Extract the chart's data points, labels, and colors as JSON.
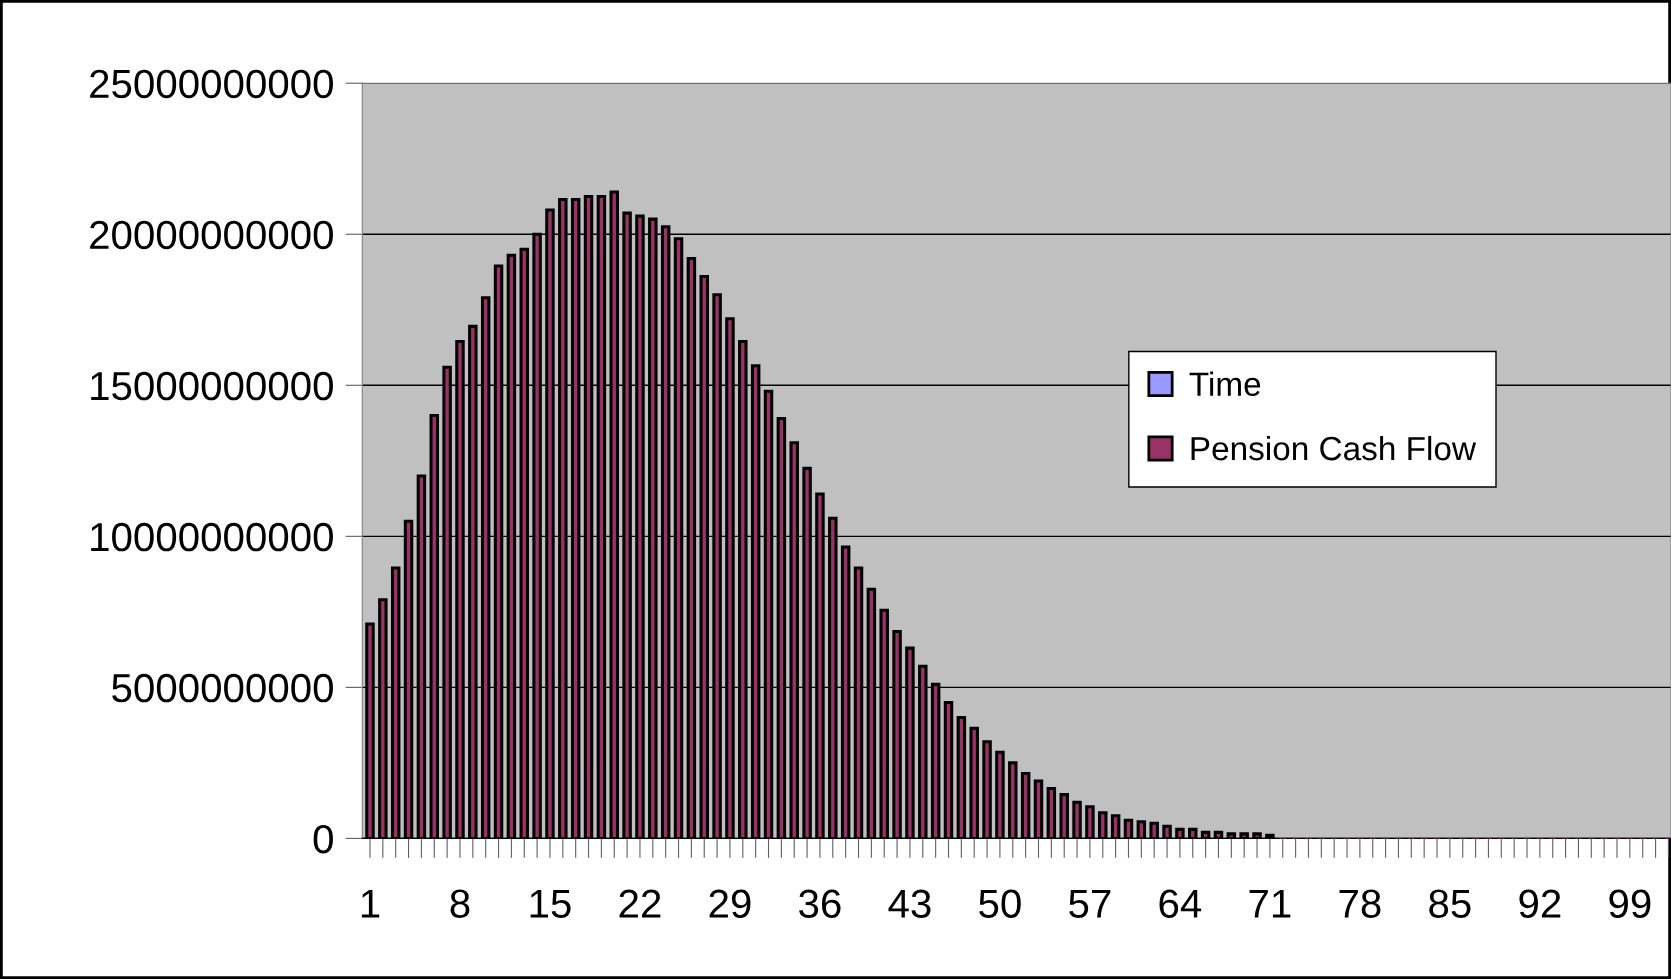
{
  "chart_data": {
    "type": "bar",
    "categories": [
      "1",
      null,
      null,
      null,
      null,
      null,
      null,
      "8",
      null,
      null,
      null,
      null,
      null,
      null,
      "15",
      null,
      null,
      null,
      null,
      null,
      null,
      "22",
      null,
      null,
      null,
      null,
      null,
      null,
      "29",
      null,
      null,
      null,
      null,
      null,
      null,
      "36",
      null,
      null,
      null,
      null,
      null,
      null,
      "43",
      null,
      null,
      null,
      null,
      null,
      null,
      "50",
      null,
      null,
      null,
      null,
      null,
      null,
      "57",
      null,
      null,
      null,
      null,
      null,
      null,
      "64",
      null,
      null,
      null,
      null,
      null,
      null,
      "71",
      null,
      null,
      null,
      null,
      null,
      null,
      "78",
      null,
      null,
      null,
      null,
      null,
      null,
      "85",
      null,
      null,
      null,
      null,
      null,
      null,
      "92",
      null,
      null,
      null,
      null,
      null,
      null,
      "99",
      null,
      null,
      null
    ],
    "series": [
      {
        "name": "Time",
        "color": "#9999ff",
        "values": [
          null,
          null,
          null,
          null,
          null,
          null,
          null,
          null,
          null,
          null,
          null,
          null,
          null,
          null,
          null,
          null,
          null,
          null,
          null,
          null,
          null,
          null,
          null,
          null,
          null,
          null,
          null,
          null,
          null,
          null,
          null,
          null,
          null,
          null,
          null,
          null,
          null,
          null,
          null,
          null,
          null,
          null,
          null,
          null,
          null,
          null,
          null,
          null,
          null,
          null,
          null,
          null,
          null,
          null,
          null,
          null,
          null,
          null,
          null,
          null,
          null,
          null,
          null,
          null,
          null,
          null,
          null,
          null,
          null,
          null,
          null,
          null,
          null,
          null,
          null,
          null,
          null,
          null,
          null,
          null,
          null,
          null,
          null,
          null,
          null,
          null,
          null,
          null,
          null,
          null,
          null,
          null,
          null,
          null,
          null,
          null,
          null,
          null,
          null,
          null,
          null,
          null
        ]
      },
      {
        "name": "Pension Cash Flow",
        "color": "#993366",
        "values": [
          7100000000,
          7900000000,
          8950000000,
          10500000000,
          12000000000,
          14000000000,
          15600000000,
          16450000000,
          16950000000,
          17900000000,
          18950000000,
          19300000000,
          19500000000,
          20000000000,
          20800000000,
          21150000000,
          21150000000,
          21250000000,
          21250000000,
          21400000000,
          20700000000,
          20600000000,
          20500000000,
          20250000000,
          19850000000,
          19200000000,
          18600000000,
          18000000000,
          17200000000,
          16450000000,
          15650000000,
          14800000000,
          13900000000,
          13100000000,
          12250000000,
          11400000000,
          10600000000,
          9650000000,
          8950000000,
          8250000000,
          7550000000,
          6850000000,
          6300000000,
          5700000000,
          5100000000,
          4500000000,
          4000000000,
          3650000000,
          3200000000,
          2850000000,
          2500000000,
          2150000000,
          1900000000,
          1650000000,
          1450000000,
          1200000000,
          1050000000,
          850000000,
          750000000,
          600000000,
          550000000,
          500000000,
          400000000,
          300000000,
          300000000,
          200000000,
          200000000,
          150000000,
          150000000,
          150000000,
          100000000,
          0,
          0,
          0,
          0,
          0,
          0,
          0,
          0,
          0,
          0,
          0,
          0,
          0,
          0,
          0,
          0,
          0,
          0,
          0,
          0,
          0,
          0,
          0,
          0,
          0,
          0,
          0,
          0,
          0,
          0,
          0
        ]
      }
    ],
    "ylim": [
      0,
      25000000000
    ],
    "yticks": [
      0,
      5000000000,
      10000000000,
      15000000000,
      20000000000,
      25000000000
    ],
    "grid": "y",
    "legend": "right"
  }
}
